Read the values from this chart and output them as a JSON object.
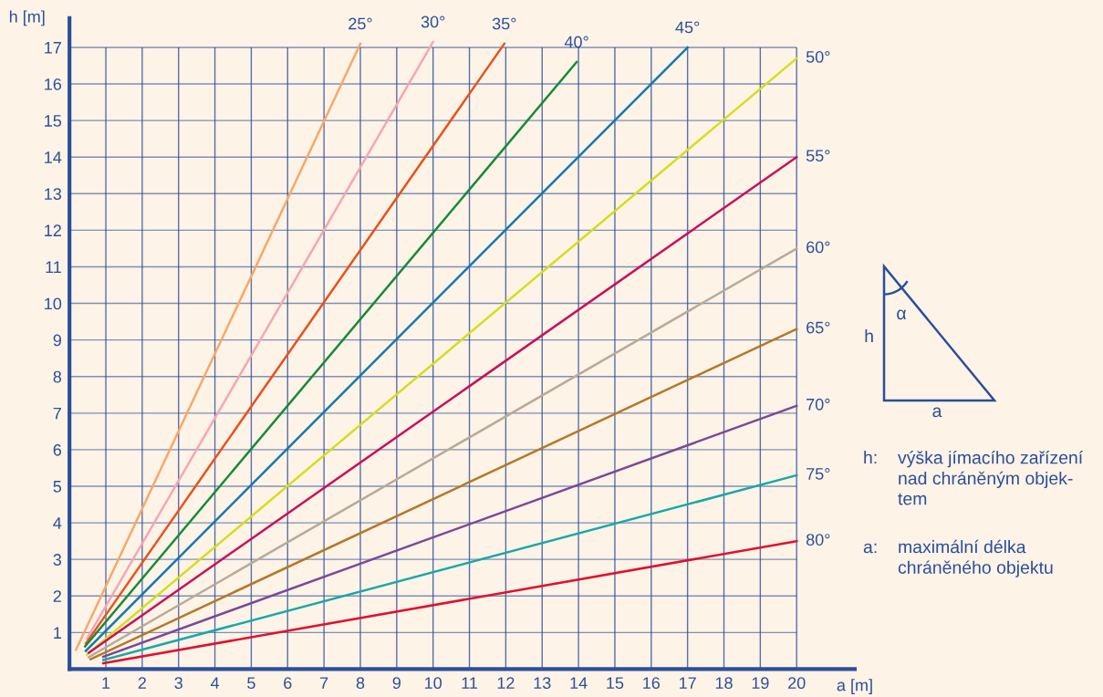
{
  "chart_data": {
    "type": "line",
    "xlabel": "a [m]",
    "ylabel": "h [m]",
    "xlim": [
      0,
      21.6
    ],
    "ylim": [
      0,
      17.8
    ],
    "xticks": [
      1,
      2,
      3,
      4,
      5,
      6,
      7,
      8,
      9,
      10,
      11,
      12,
      13,
      14,
      15,
      16,
      17,
      18,
      19,
      20
    ],
    "yticks": [
      1,
      2,
      3,
      4,
      5,
      6,
      7,
      8,
      9,
      10,
      11,
      12,
      13,
      14,
      15,
      16,
      17
    ],
    "grid": true,
    "legend": false,
    "marker": "none",
    "line_style": "solid",
    "series": [
      {
        "name": "25°",
        "color": "#f7a86a",
        "x": [
          0.18,
          8
        ],
        "values": [
          0.53,
          17.1
        ]
      },
      {
        "name": "30°",
        "color": "#f4a7b4",
        "x": [
          0.48,
          10
        ],
        "values": [
          0.83,
          17.15
        ]
      },
      {
        "name": "35°",
        "color": "#e8521f",
        "x": [
          0.45,
          11.96
        ],
        "values": [
          0.7,
          17.1
        ]
      },
      {
        "name": "40°",
        "color": "#17893a",
        "x": [
          0.43,
          13.95
        ],
        "values": [
          0.62,
          16.6
        ]
      },
      {
        "name": "45°",
        "color": "#1579b0",
        "x": [
          0.45,
          17
        ],
        "values": [
          0.5,
          17
        ]
      },
      {
        "name": "50°",
        "color": "#d5de1d",
        "x": [
          0.48,
          20
        ],
        "values": [
          0.4,
          16.7
        ]
      },
      {
        "name": "55°",
        "color": "#c8105c",
        "x": [
          0.53,
          20
        ],
        "values": [
          0.45,
          14.0
        ]
      },
      {
        "name": "60°",
        "color": "#b9aa9a",
        "x": [
          0.53,
          20
        ],
        "values": [
          0.33,
          11.5
        ]
      },
      {
        "name": "65°",
        "color": "#b4782a",
        "x": [
          0.58,
          20
        ],
        "values": [
          0.27,
          9.3
        ]
      },
      {
        "name": "70°",
        "color": "#7a4898",
        "x": [
          0.93,
          20
        ],
        "values": [
          0.34,
          7.2
        ]
      },
      {
        "name": "75°",
        "color": "#17a8a8",
        "x": [
          0.93,
          20
        ],
        "values": [
          0.25,
          5.3
        ]
      },
      {
        "name": "80°",
        "color": "#e01030",
        "x": [
          0.93,
          20
        ],
        "values": [
          0.16,
          3.5
        ]
      }
    ],
    "annotations": [
      "h",
      "α",
      "a",
      "h:",
      "výška jímacího zařízení\nnad chráněným objek-\ntem",
      "a:",
      "maximální délka\nchráněného objektu"
    ]
  }
}
